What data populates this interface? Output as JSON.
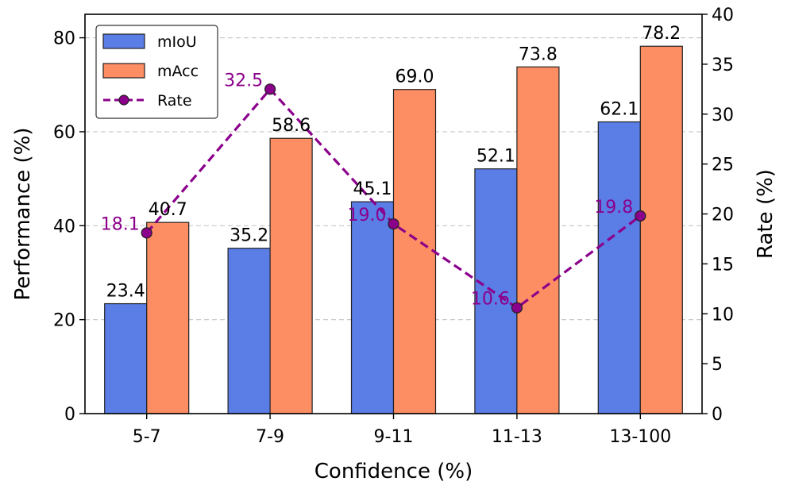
{
  "chart_data": {
    "type": "bar",
    "categories": [
      "5-7",
      "7-9",
      "9-11",
      "11-13",
      "13-100"
    ],
    "series": [
      {
        "name": "mIoU",
        "values": [
          23.4,
          35.2,
          45.1,
          52.1,
          62.1
        ],
        "color": "#5a7de6"
      },
      {
        "name": "mAcc",
        "values": [
          40.7,
          58.6,
          69.0,
          73.8,
          78.2
        ],
        "color": "#fd8d62"
      }
    ],
    "line_series": {
      "name": "Rate",
      "values": [
        18.1,
        32.5,
        19.0,
        10.6,
        19.8
      ],
      "color": "#8b008b",
      "axis": "right"
    },
    "bar_labels": {
      "mIoU": [
        "23.4",
        "35.2",
        "45.1",
        "52.1",
        "62.1"
      ],
      "mAcc": [
        "40.7",
        "58.6",
        "69.0",
        "73.8",
        "78.2"
      ]
    },
    "rate_labels": [
      "18.1",
      "32.5",
      "19.0",
      "10.6",
      "19.8"
    ],
    "xlabel": "Confidence (%)",
    "ylabel": "Performance (%)",
    "y2label": "Rate (%)",
    "ylim": [
      0,
      85
    ],
    "y2lim": [
      0,
      40
    ],
    "yticks": [
      0,
      20,
      40,
      60,
      80
    ],
    "y2ticks": [
      0,
      5,
      10,
      15,
      20,
      25,
      30,
      35,
      40
    ],
    "grid": "horizontal dashed",
    "legend": {
      "position": "top-left",
      "entries": [
        "mIoU",
        "mAcc",
        "Rate"
      ]
    }
  }
}
